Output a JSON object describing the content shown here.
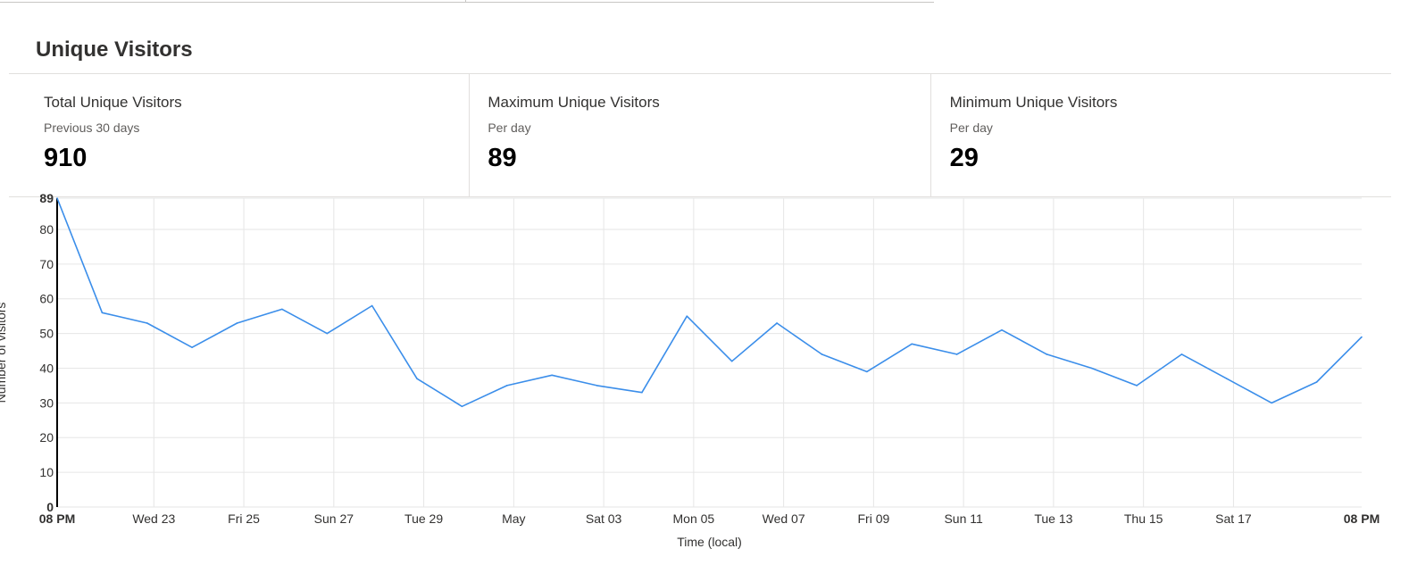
{
  "page": {
    "title": "Unique Visitors"
  },
  "cards": [
    {
      "title": "Total Unique Visitors",
      "subtitle": "Previous 30 days",
      "value": "910"
    },
    {
      "title": "Maximum Unique Visitors",
      "subtitle": "Per day",
      "value": "89"
    },
    {
      "title": "Minimum Unique Visitors",
      "subtitle": "Per day",
      "value": "29"
    }
  ],
  "chart_data": {
    "type": "line",
    "xlabel": "Time (local)",
    "ylabel": "Number of visitors",
    "ylim": [
      0,
      89
    ],
    "yticks": [
      0,
      10,
      20,
      30,
      40,
      50,
      60,
      70,
      80,
      89
    ],
    "ytick_bold": [
      0,
      89
    ],
    "x_tick_labels": [
      {
        "label": "08 PM",
        "index": 0,
        "bold": true
      },
      {
        "label": "Wed 23",
        "index": 2.15
      },
      {
        "label": "Fri 25",
        "index": 4.15
      },
      {
        "label": "Sun 27",
        "index": 6.15
      },
      {
        "label": "Tue 29",
        "index": 8.15
      },
      {
        "label": "May",
        "index": 10.15
      },
      {
        "label": "Sat 03",
        "index": 12.15
      },
      {
        "label": "Mon 05",
        "index": 14.15
      },
      {
        "label": "Wed 07",
        "index": 16.15
      },
      {
        "label": "Fri 09",
        "index": 18.15
      },
      {
        "label": "Sun 11",
        "index": 20.15
      },
      {
        "label": "Tue 13",
        "index": 22.15
      },
      {
        "label": "Thu 15",
        "index": 24.15
      },
      {
        "label": "Sat 17",
        "index": 26.15
      },
      {
        "label": "08 PM",
        "index": 29,
        "bold": true
      }
    ],
    "grid": true,
    "line_color": "#3b8eea",
    "series": [
      {
        "values": [
          89,
          56,
          53,
          46,
          53,
          57,
          50,
          58,
          37,
          29,
          35,
          38,
          35,
          33,
          55,
          42,
          53,
          44,
          39,
          47,
          44,
          51,
          44,
          40,
          35,
          44,
          37,
          30,
          36,
          49
        ]
      }
    ]
  }
}
